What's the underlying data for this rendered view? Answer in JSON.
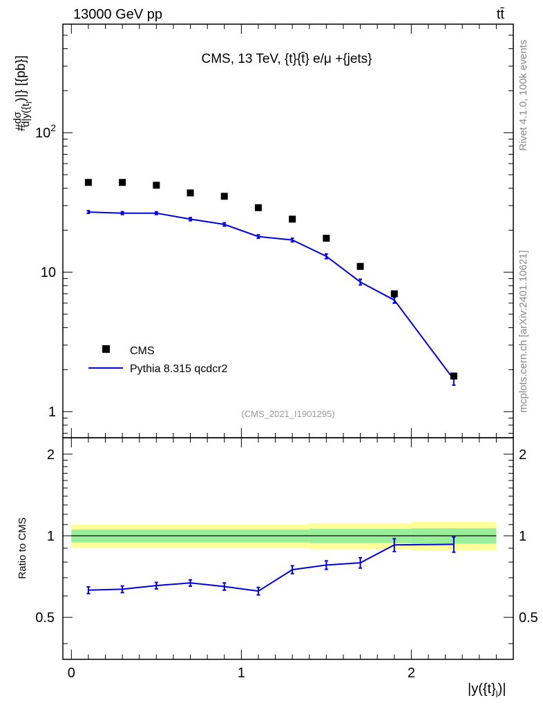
{
  "header": {
    "left": "13000 GeV pp",
    "right": "tt̄"
  },
  "side_text": {
    "top": "Rivet 4.1.0,  100k events",
    "bottom": "mcplots.cern.ch [arXiv:2401.10621]"
  },
  "chart_data": {
    "type": "scatter",
    "title": "CMS, 13 TeV, {t}{t̄} e/μ +{jets}",
    "analysis": "(CMS_2021_I1901295)",
    "ylabel_top": "#dσ/d|y({t}_l)|} [{pb}]",
    "ylabel_top_parts": {
      "prefix": "#",
      "num": "dσ",
      "den": "d|y({t",
      "sub": "l",
      "tail": ")|} [{pb}]"
    },
    "ylabel_bottom": "Ratio to CMS",
    "xlabel": "|y({t}_l)|",
    "xlabel_parts": {
      "main": "|y({t}",
      "sub": "l",
      "tail": ")|"
    },
    "xlim": [
      -0.05,
      2.6
    ],
    "ylim_top": [
      0.65,
      600
    ],
    "ylim_bottom": [
      0.35,
      2.3
    ],
    "x_ticks": [
      {
        "v": 0,
        "label": "0"
      },
      {
        "v": 1,
        "label": "1"
      },
      {
        "v": 2,
        "label": "2"
      }
    ],
    "y_ticks_top": [
      {
        "v": 1,
        "label": "1"
      },
      {
        "v": 10,
        "label": "10"
      },
      {
        "v": 100,
        "label": "10",
        "sup": "2"
      }
    ],
    "y_ticks_bottom": [
      {
        "v": 0.5,
        "label": "0.5"
      },
      {
        "v": 1,
        "label": "1"
      },
      {
        "v": 2,
        "label": "2"
      }
    ],
    "legend": [
      {
        "name": "CMS",
        "marker": "square"
      },
      {
        "name": "Pythia 8.315 qcdcr2",
        "marker": "line"
      }
    ],
    "x": [
      0.1,
      0.3,
      0.5,
      0.7,
      0.9,
      1.1,
      1.3,
      1.5,
      1.7,
      1.9,
      2.25
    ],
    "series": [
      {
        "name": "CMS",
        "color": "#000000",
        "values": [
          44,
          44,
          42,
          37,
          35,
          29,
          24,
          17.5,
          11,
          7,
          1.8
        ]
      },
      {
        "name": "Pythia 8.315 qcdcr2",
        "color": "#0000dd",
        "values": [
          27,
          26.5,
          26.5,
          24,
          22,
          18,
          17,
          13,
          8.5,
          6.3,
          1.7
        ],
        "errors": [
          0.6,
          0.6,
          0.6,
          0.6,
          0.6,
          0.5,
          0.5,
          0.5,
          0.4,
          0.3,
          0.15
        ]
      }
    ],
    "ratio": {
      "values": [
        0.63,
        0.635,
        0.655,
        0.67,
        0.65,
        0.625,
        0.75,
        0.78,
        0.795,
        0.925,
        0.93
      ],
      "errors": [
        0.018,
        0.018,
        0.018,
        0.018,
        0.02,
        0.02,
        0.025,
        0.028,
        0.035,
        0.05,
        0.06
      ],
      "band_inner": [
        {
          "x0": 0,
          "x1": 1.4,
          "lo": 0.945,
          "hi": 1.055
        },
        {
          "x0": 1.4,
          "x1": 2.0,
          "lo": 0.94,
          "hi": 1.06
        },
        {
          "x0": 2.0,
          "x1": 2.5,
          "lo": 0.935,
          "hi": 1.065
        }
      ],
      "band_outer": [
        {
          "x0": 0,
          "x1": 1.4,
          "lo": 0.905,
          "hi": 1.1
        },
        {
          "x0": 1.4,
          "x1": 2.0,
          "lo": 0.895,
          "hi": 1.11
        },
        {
          "x0": 2.0,
          "x1": 2.5,
          "lo": 0.885,
          "hi": 1.125
        }
      ]
    }
  }
}
